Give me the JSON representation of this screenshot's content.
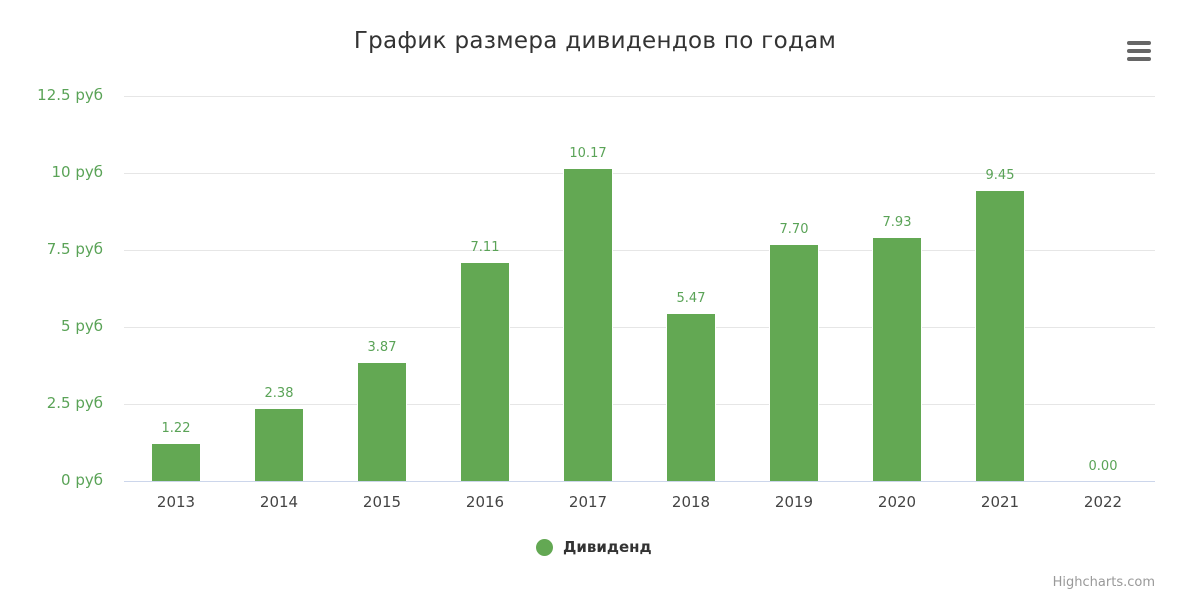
{
  "title": "График размера дивидендов по годам",
  "menu": {
    "icon": "hamburger-menu-icon"
  },
  "y_axis": {
    "ticks": [
      "0 руб",
      "2.5 руб",
      "5 руб",
      "7.5 руб",
      "10 руб",
      "12.5 руб"
    ]
  },
  "x_axis": {
    "ticks": [
      "2013",
      "2014",
      "2015",
      "2016",
      "2017",
      "2018",
      "2019",
      "2020",
      "2021",
      "2022"
    ]
  },
  "data_labels": [
    "1.22",
    "2.38",
    "3.87",
    "7.11",
    "10.17",
    "5.47",
    "7.70",
    "7.93",
    "9.45",
    "0.00"
  ],
  "legend": {
    "label": "Дивиденд",
    "color": "#63a853"
  },
  "credits": "Highcharts.com",
  "colors": {
    "bar": "#63a853",
    "axis_label": "#5aa357",
    "grid": "#e6e6e6"
  },
  "chart_data": {
    "type": "bar",
    "title": "График размера дивидендов по годам",
    "xlabel": "",
    "ylabel": "",
    "categories": [
      "2013",
      "2014",
      "2015",
      "2016",
      "2017",
      "2018",
      "2019",
      "2020",
      "2021",
      "2022"
    ],
    "series": [
      {
        "name": "Дивиденд",
        "values": [
          1.22,
          2.38,
          3.87,
          7.11,
          10.17,
          5.47,
          7.7,
          7.93,
          9.45,
          0.0
        ]
      }
    ],
    "ylim": [
      0,
      12.5
    ],
    "ytick_step": 2.5,
    "ytick_suffix": " руб",
    "grid": true,
    "legend_position": "bottom-center",
    "data_labels": true
  }
}
